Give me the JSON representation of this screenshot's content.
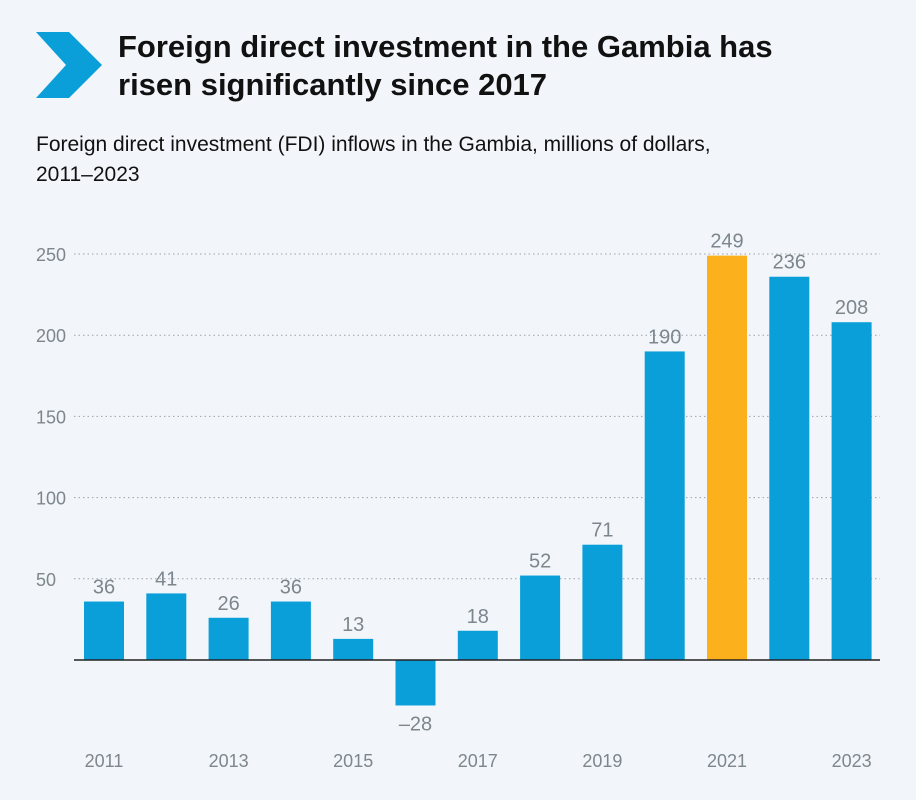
{
  "header": {
    "title_line1": "Foreign direct investment in the Gambia has",
    "title_line2": "risen significantly since 2017",
    "subtitle_line1": "Foreign direct investment (FDI) inflows in the Gambia, millions of dollars,",
    "subtitle_line2": "2011–2023",
    "icon": "chevron-right-icon"
  },
  "colors": {
    "background": "#f2f6fa",
    "chevron": "#0a9fd8",
    "bar": "#0a9fd8",
    "highlight": "#fbb01c",
    "grid": "#9aa3ab",
    "axis": "#222222",
    "label": "#7d868d"
  },
  "chart_data": {
    "type": "bar",
    "title": "Foreign direct investment in the Gambia has risen significantly since 2017",
    "subtitle": "Foreign direct investment (FDI) inflows in the Gambia, millions of dollars, 2011–2023",
    "categories": [
      "2011",
      "2012",
      "2013",
      "2014",
      "2015",
      "2016",
      "2017",
      "2018",
      "2019",
      "2020",
      "2021",
      "2022",
      "2023"
    ],
    "values": [
      36,
      41,
      26,
      36,
      13,
      -28,
      18,
      52,
      71,
      190,
      249,
      236,
      208
    ],
    "value_labels": [
      "36",
      "41",
      "26",
      "36",
      "13",
      "–28",
      "18",
      "52",
      "71",
      "190",
      "249",
      "236",
      "208"
    ],
    "x_tick_labels": [
      "2011",
      "",
      "2013",
      "",
      "2015",
      "",
      "2017",
      "",
      "2019",
      "",
      "2021",
      "",
      "2023"
    ],
    "highlight_category": "2021",
    "yticks": [
      50,
      100,
      150,
      200,
      250
    ],
    "ylim": [
      -28,
      250
    ],
    "xlabel": "",
    "ylabel": "",
    "grid": true
  }
}
